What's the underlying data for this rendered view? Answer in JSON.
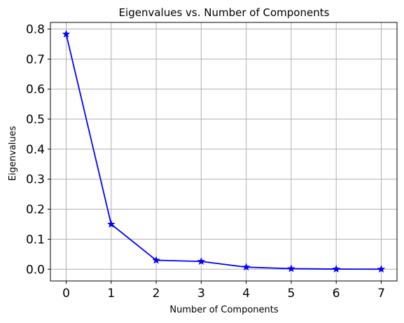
{
  "chart_data": {
    "type": "line",
    "title": "Eigenvalues vs. Number of Components",
    "xlabel": "Number of Components",
    "ylabel": "Eigenvalues",
    "x": [
      0,
      1,
      2,
      3,
      4,
      5,
      6,
      7
    ],
    "series": [
      {
        "values": [
          0.783,
          0.15,
          0.03,
          0.026,
          0.007,
          0.002,
          0.0005,
          0.0002
        ],
        "color": "#0000ff",
        "marker": "star"
      }
    ],
    "xlim": [
      -0.35,
      7.35
    ],
    "ylim": [
      -0.039,
      0.822
    ],
    "xticks": [
      0,
      1,
      2,
      3,
      4,
      5,
      6,
      7
    ],
    "xtick_labels": [
      "0",
      "1",
      "2",
      "3",
      "4",
      "5",
      "6",
      "7"
    ],
    "yticks": [
      0.0,
      0.1,
      0.2,
      0.3,
      0.4,
      0.5,
      0.6,
      0.7,
      0.8
    ],
    "ytick_labels": [
      "0.0",
      "0.1",
      "0.2",
      "0.3",
      "0.4",
      "0.5",
      "0.6",
      "0.7",
      "0.8"
    ],
    "grid": true,
    "grid_color": "#b0b0b0",
    "legend": false
  }
}
